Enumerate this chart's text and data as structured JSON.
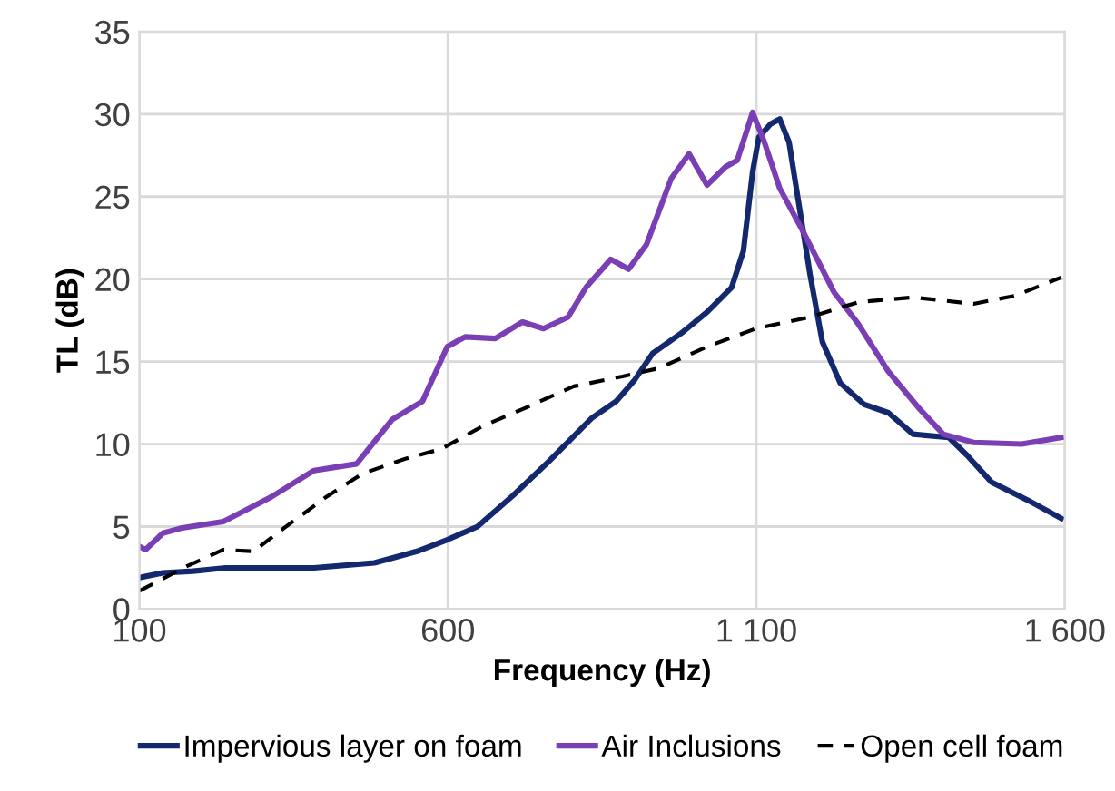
{
  "chart_data": {
    "type": "line",
    "xlabel": "Frequency (Hz)",
    "ylabel": "TL (dB)",
    "xlim": [
      100,
      1600
    ],
    "xticks": [
      100,
      600,
      {
        "value": 1100,
        "label": "1 100"
      },
      {
        "value": 1600,
        "label": "1 600"
      }
    ],
    "ylim": [
      0,
      35
    ],
    "yticks": [
      0,
      5,
      10,
      15,
      20,
      25,
      30,
      35
    ],
    "grid": true,
    "legend": "bottom",
    "marker": "none",
    "series": [
      {
        "name": "Impervious layer on foam",
        "color": "#14286e",
        "line_style": "solid",
        "x": [
          100,
          138,
          187,
          240,
          285,
          383,
          481,
          550,
          599,
          648,
          706,
          765,
          834,
          873,
          903,
          932,
          981,
          1020,
          1060,
          1079,
          1094,
          1104,
          1123,
          1138,
          1153,
          1167,
          1187,
          1207,
          1236,
          1275,
          1314,
          1354,
          1412,
          1442,
          1481,
          1540,
          1594
        ],
        "values": [
          1.9,
          2.2,
          2.3,
          2.5,
          2.5,
          2.5,
          2.8,
          3.5,
          4.2,
          5.0,
          6.9,
          9.0,
          11.6,
          12.6,
          13.9,
          15.5,
          16.8,
          18.0,
          19.5,
          21.7,
          26.5,
          28.6,
          29.4,
          29.7,
          28.3,
          25.0,
          20.3,
          16.2,
          13.7,
          12.4,
          11.9,
          10.6,
          10.4,
          9.3,
          7.7,
          6.6,
          5.5
        ]
      },
      {
        "name": "Air Inclusions",
        "color": "#7b3fb5",
        "line_style": "solid",
        "x": [
          100,
          110,
          138,
          167,
          236,
          314,
          383,
          452,
          510,
          559,
          599,
          628,
          677,
          721,
          755,
          795,
          824,
          864,
          893,
          922,
          962,
          991,
          1020,
          1050,
          1069,
          1094,
          1113,
          1138,
          1177,
          1226,
          1265,
          1314,
          1363,
          1403,
          1452,
          1530,
          1594
        ],
        "values": [
          3.8,
          3.6,
          4.6,
          4.9,
          5.3,
          6.8,
          8.4,
          8.8,
          11.5,
          12.6,
          15.9,
          16.5,
          16.4,
          17.4,
          17.0,
          17.7,
          19.5,
          21.2,
          20.6,
          22.1,
          26.1,
          27.6,
          25.7,
          26.8,
          27.2,
          30.1,
          28.3,
          25.5,
          22.8,
          19.2,
          17.3,
          14.4,
          12.2,
          10.6,
          10.1,
          10.0,
          10.4
        ]
      },
      {
        "name": "Open cell foam",
        "color": "#000000",
        "line_style": "dashed",
        "x": [
          100,
          177,
          236,
          285,
          334,
          403,
          461,
          530,
          589,
          657,
          726,
          804,
          883,
          942,
          1020,
          1099,
          1187,
          1265,
          1354,
          1452,
          1520,
          1594
        ],
        "values": [
          1.1,
          2.6,
          3.6,
          3.5,
          4.9,
          6.8,
          8.2,
          9.1,
          9.7,
          11.1,
          12.2,
          13.5,
          14.1,
          14.6,
          15.9,
          17.0,
          17.7,
          18.6,
          18.9,
          18.5,
          19.0,
          20.1
        ]
      }
    ]
  }
}
